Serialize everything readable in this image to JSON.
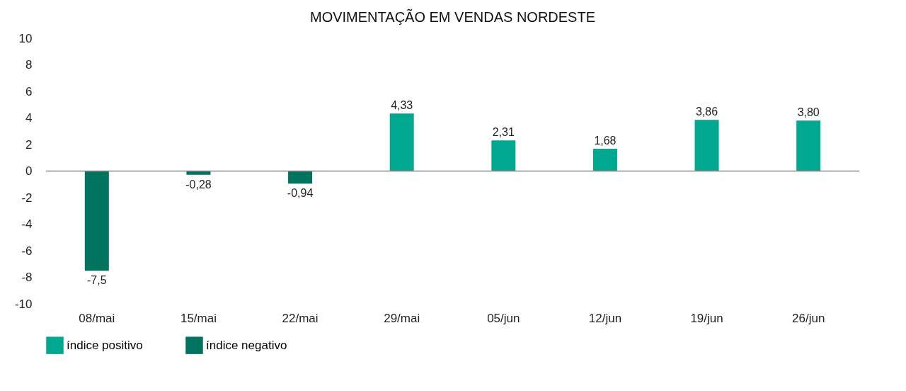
{
  "chart_data": {
    "type": "bar",
    "title": "MOVIMENTAÇÃO EM VENDAS NORDESTE",
    "categories": [
      "08/mai",
      "15/mai",
      "22/mai",
      "29/mai",
      "05/jun",
      "12/jun",
      "19/jun",
      "26/jun"
    ],
    "series": [
      {
        "name": "índice positivo",
        "color": "#00a88f",
        "values": [
          null,
          null,
          null,
          4.33,
          2.31,
          1.68,
          3.86,
          3.8
        ],
        "value_labels": [
          null,
          null,
          null,
          "4,33",
          "2,31",
          "1,68",
          "3,86",
          "3,80"
        ]
      },
      {
        "name": "índice negativo",
        "color": "#00735f",
        "values": [
          -7.5,
          -0.28,
          -0.94,
          null,
          null,
          null,
          null,
          null
        ],
        "value_labels": [
          "-7,5",
          "-0,28",
          "-0,94",
          null,
          null,
          null,
          null,
          null
        ]
      }
    ],
    "ylim": [
      -10,
      10
    ],
    "yticks": [
      -10,
      -8,
      -6,
      -4,
      -2,
      0,
      2,
      4,
      6,
      8,
      10
    ],
    "ref_lines": [
      {
        "axis": "y",
        "value": 0,
        "color": "#8c8c8c"
      }
    ],
    "grid": false,
    "legend": "bottom"
  }
}
